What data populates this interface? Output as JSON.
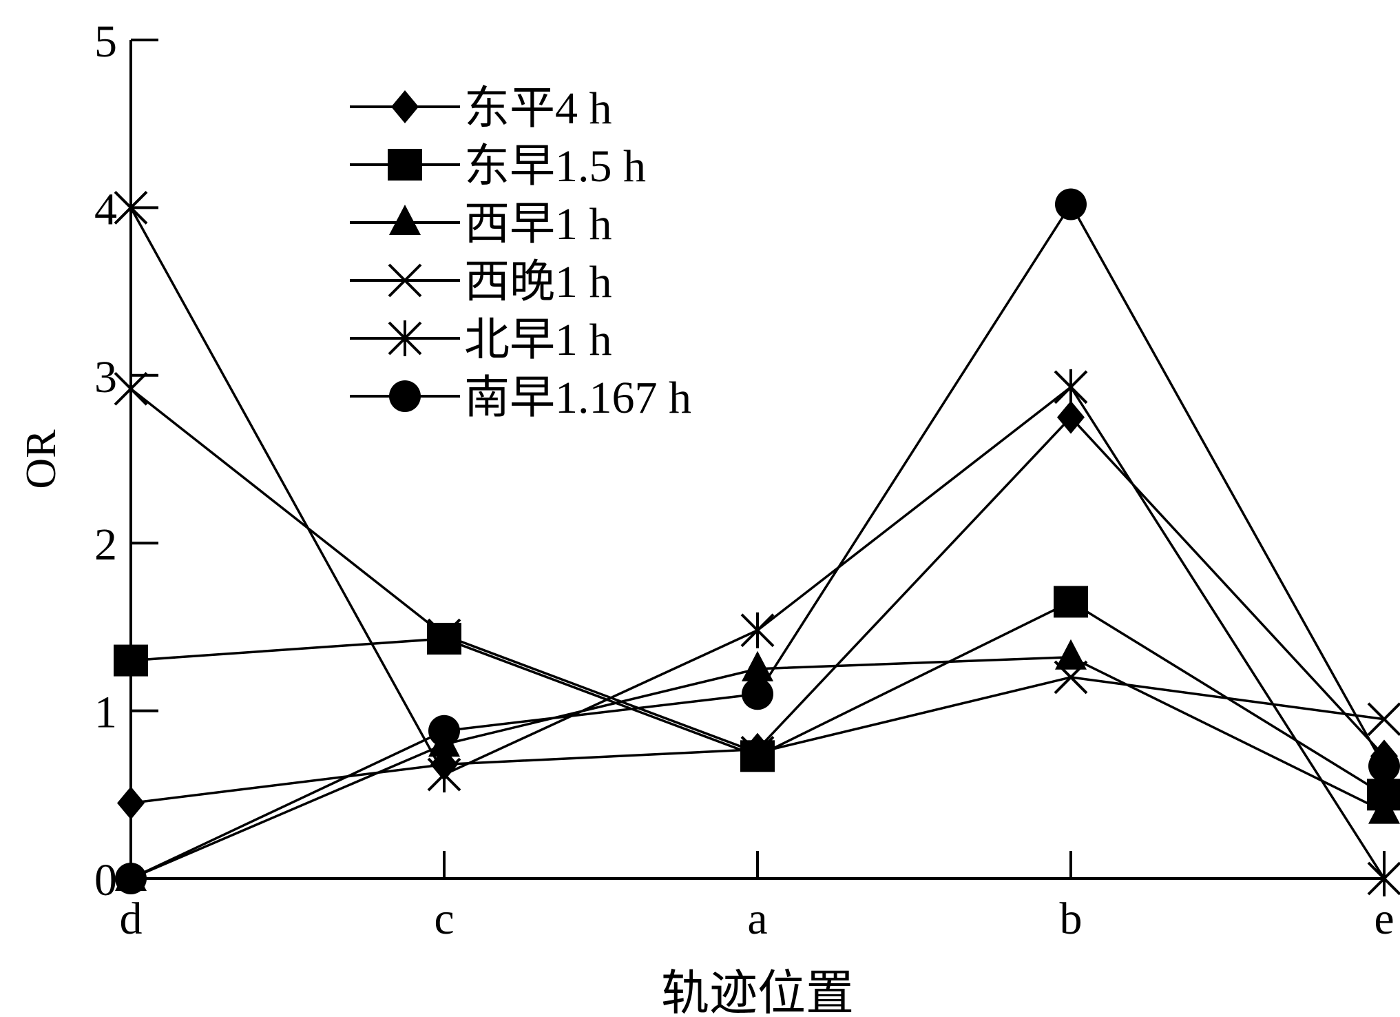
{
  "chart_data": {
    "type": "line",
    "xlabel": "轨迹位置",
    "ylabel": "OR",
    "categories": [
      "d",
      "c",
      "a",
      "b",
      "e"
    ],
    "ylim": [
      0,
      5
    ],
    "yticks": [
      "0",
      "1",
      "2",
      "3",
      "4",
      "5"
    ],
    "grid": false,
    "legend_position": "top-left",
    "line_color": "#000000",
    "series": [
      {
        "name": "东平4 h",
        "marker": "diamond",
        "values": [
          0.45,
          0.68,
          0.77,
          2.75,
          0.73
        ]
      },
      {
        "name": "东早1.5 h",
        "marker": "square",
        "values": [
          1.3,
          1.43,
          0.73,
          1.65,
          0.5
        ]
      },
      {
        "name": "西早1 h",
        "marker": "triangle",
        "values": [
          0,
          0.8,
          1.25,
          1.32,
          0.4
        ]
      },
      {
        "name": "西晚1 h",
        "marker": "x",
        "values": [
          2.92,
          1.45,
          0.75,
          1.2,
          0.95
        ]
      },
      {
        "name": "北早1 h",
        "marker": "asterisk",
        "values": [
          4.0,
          0.62,
          1.48,
          2.93,
          0
        ]
      },
      {
        "name": "南早1.167 h",
        "marker": "circle",
        "values": [
          0,
          0.88,
          1.1,
          4.02,
          0.67
        ]
      }
    ]
  }
}
